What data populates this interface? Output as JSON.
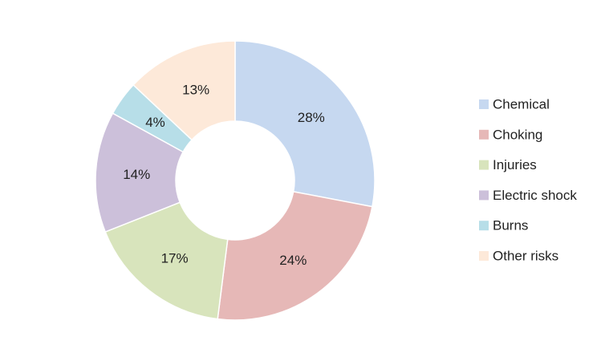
{
  "chart_data": {
    "type": "pie",
    "variant": "donut",
    "title": "",
    "categories": [
      "Chemical",
      "Choking",
      "Injuries",
      "Electric shock",
      "Burns",
      "Other risks"
    ],
    "values": [
      28,
      24,
      17,
      14,
      4,
      13
    ],
    "labels": [
      "28%",
      "24%",
      "17%",
      "14%",
      "4%",
      "13%"
    ],
    "colors": [
      "#c6d8f0",
      "#e6b8b7",
      "#d8e4bc",
      "#ccc0da",
      "#b7dee8",
      "#fde9d9"
    ],
    "legend_position": "right"
  }
}
